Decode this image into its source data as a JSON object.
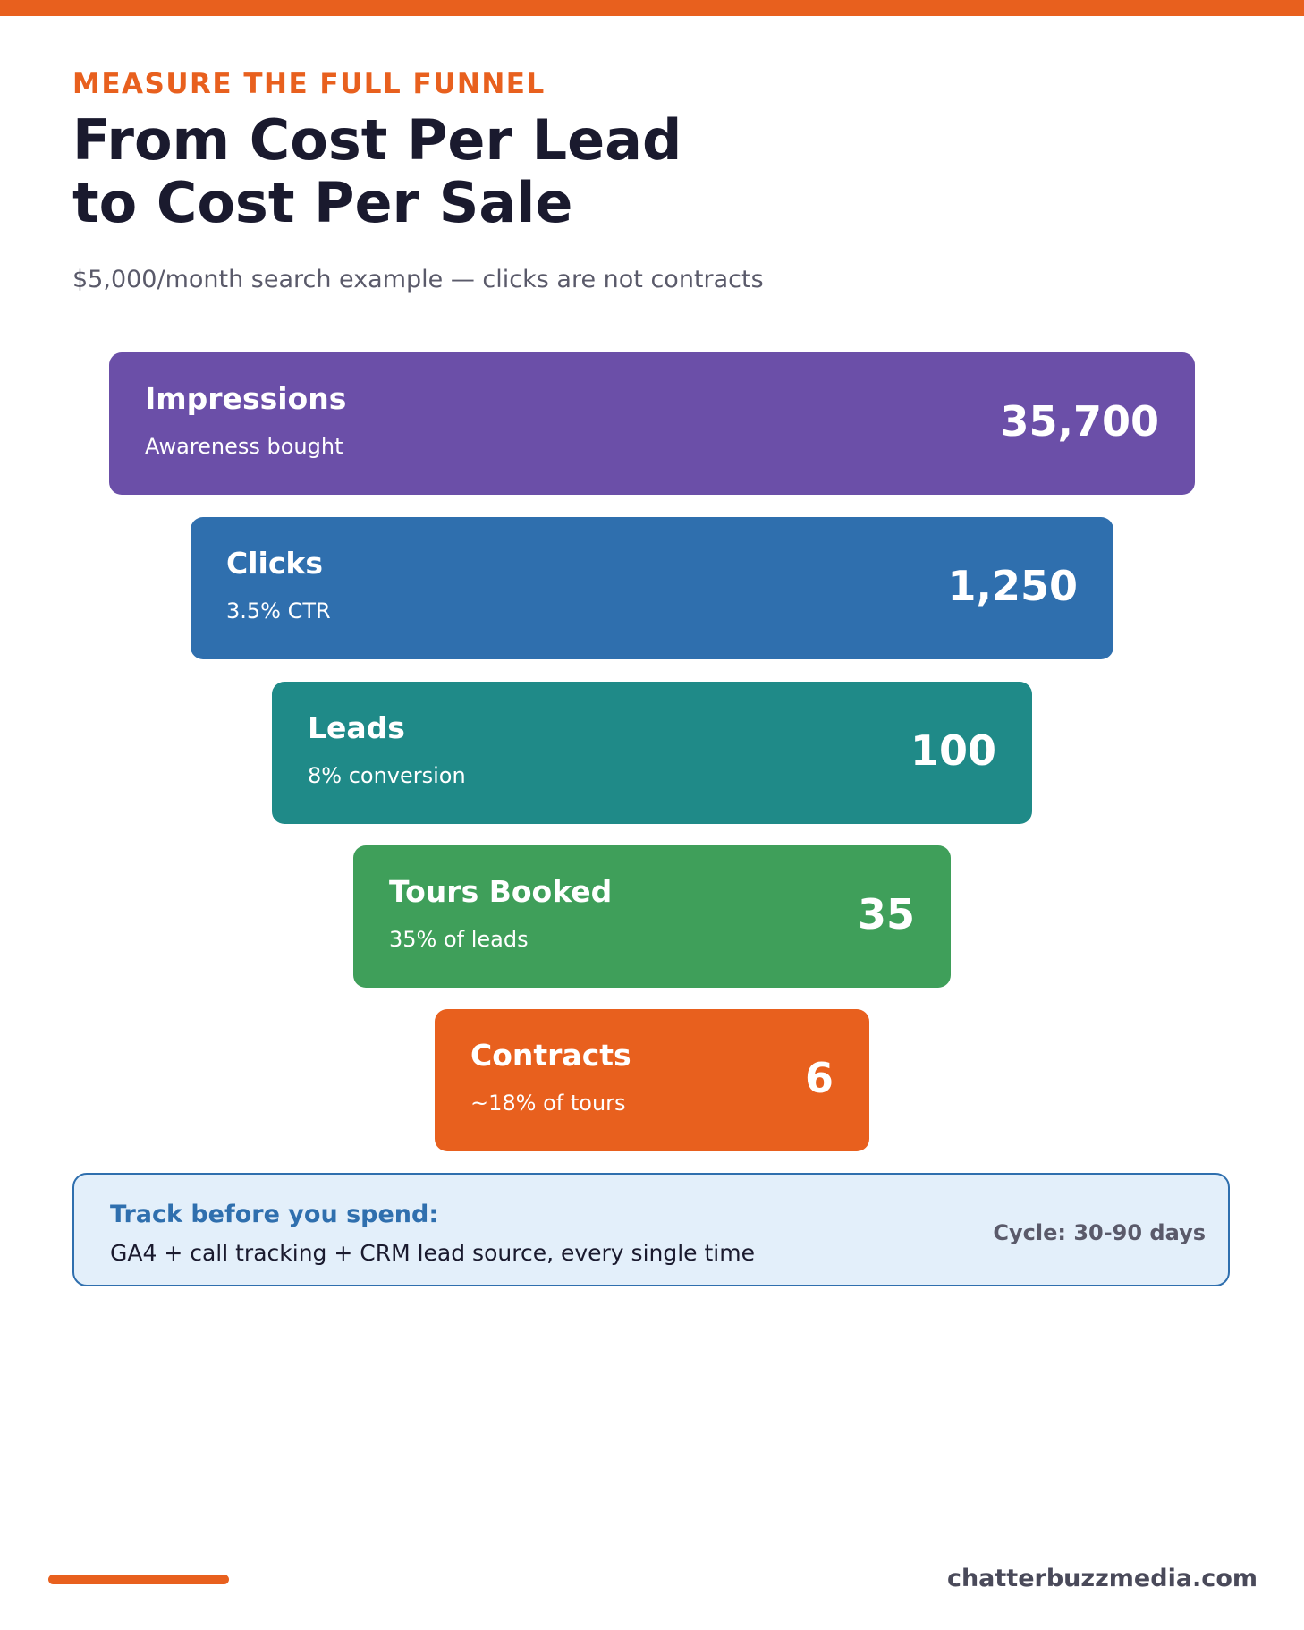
{
  "header": {
    "kicker": "MEASURE THE FULL FUNNEL",
    "title_lines": [
      "From Cost Per Lead",
      "to Cost Per Sale"
    ],
    "subtitle": "$5,000/month search example — clicks are not contracts"
  },
  "funnel": {
    "stages": [
      {
        "label": "Impressions",
        "sub": "Awareness bought",
        "value": "35,700",
        "color": "#6B4FA8"
      },
      {
        "label": "Clicks",
        "sub": "3.5% CTR",
        "value": "1,250",
        "color": "#2F6FAE"
      },
      {
        "label": "Leads",
        "sub": "8% conversion",
        "value": "100",
        "color": "#1F8A88"
      },
      {
        "label": "Tours Booked",
        "sub": "35% of leads",
        "value": "35",
        "color": "#3F9F5A"
      },
      {
        "label": "Contracts",
        "sub": "~18% of tours",
        "value": "6",
        "color": "#E8601E"
      }
    ]
  },
  "callout": {
    "title": "Track before you spend:",
    "body": "GA4 + call tracking + CRM lead source, every single time",
    "aside": "Cycle: 30-90 days"
  },
  "footer": {
    "domain": "chatterbuzzmedia.com"
  },
  "colors": {
    "accent": "#E8601E",
    "heading": "#1A1A2E",
    "callout_bg": "#E3EFFA",
    "callout_border": "#2F6FAE"
  }
}
